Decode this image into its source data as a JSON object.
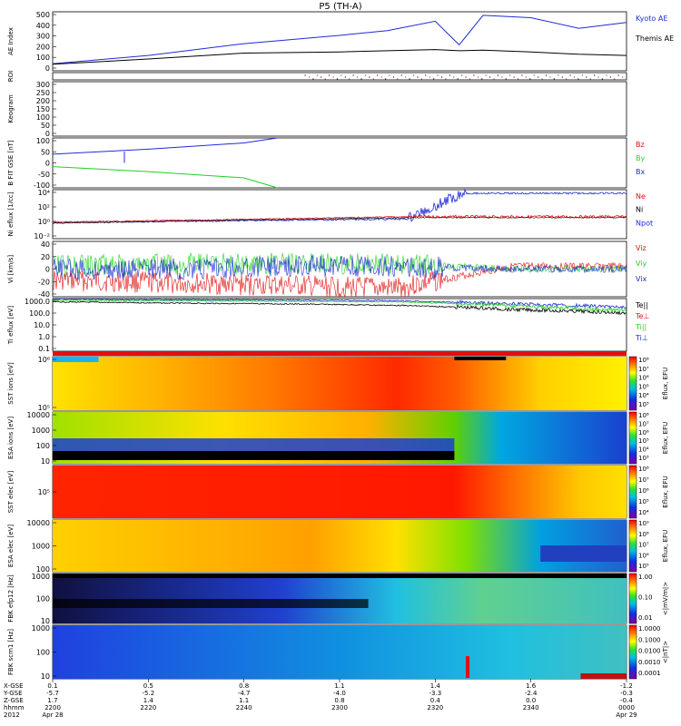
{
  "title": "P5 (TH-A)",
  "colors": {
    "blue": "#1f2bd6",
    "black": "#000000",
    "red": "#e01010",
    "green": "#20d020"
  },
  "panels": [
    {
      "id": "ae",
      "ylabel": "AE Index",
      "ticks": [
        "500",
        "400",
        "300",
        "200",
        "100",
        "0"
      ],
      "legend": [
        {
          "text": "Kyoto AE",
          "color": "#1f2bd6"
        },
        {
          "text": "Themis AE",
          "color": "#000000"
        }
      ]
    },
    {
      "id": "roi",
      "ylabel": "ROI",
      "ticks": []
    },
    {
      "id": "keogram",
      "ylabel": "Keogram",
      "ticks": [
        "300",
        "250",
        "200",
        "150",
        "100",
        "50",
        "0"
      ]
    },
    {
      "id": "bfit",
      "ylabel": "B FIT GSE [nT]",
      "ticks": [
        "100",
        "50",
        "0",
        "-50",
        "-100"
      ],
      "legend": [
        {
          "text": "Bz",
          "color": "#e01010"
        },
        {
          "text": "By",
          "color": "#20d020"
        },
        {
          "text": "Bx",
          "color": "#1f2bd6"
        }
      ]
    },
    {
      "id": "ni",
      "ylabel": "Ni eflux [1/cc]",
      "ticks": [
        "10⁴",
        "10²",
        "10⁰",
        "10⁻²"
      ],
      "legend": [
        {
          "text": "Ne",
          "color": "#e01010"
        },
        {
          "text": "Ni",
          "color": "#000000"
        },
        {
          "text": "Npot",
          "color": "#1f2bd6"
        }
      ]
    },
    {
      "id": "vi",
      "ylabel": "Vi [km/s]",
      "ticks": [
        "40",
        "20",
        "0",
        "-20",
        "-40"
      ],
      "legend": [
        {
          "text": "Viz",
          "color": "#e01010"
        },
        {
          "text": "Viy",
          "color": "#20d020"
        },
        {
          "text": "Vix",
          "color": "#1f2bd6"
        }
      ]
    },
    {
      "id": "ti",
      "ylabel": "Ti eflux [eV]",
      "ticks": [
        "1000.0",
        "100.0",
        "10.0",
        "1.0",
        "0.1"
      ],
      "legend": [
        {
          "text": "Te||",
          "color": "#000000"
        },
        {
          "text": "Te⊥",
          "color": "#e01010"
        },
        {
          "text": "Ti||",
          "color": "#20d020"
        },
        {
          "text": "Ti⊥",
          "color": "#1f2bd6"
        }
      ]
    },
    {
      "id": "sst1",
      "ylabel": "SST ions [eV]",
      "ticks": [
        "10⁶",
        "10⁵"
      ],
      "cbar": {
        "label": "Eflux, EFU",
        "ticks": [
          "10⁸",
          "10⁷",
          "10⁶",
          "10⁵",
          "10⁴",
          "10³"
        ]
      }
    },
    {
      "id": "esa1",
      "ylabel": "ESA ions [eV]",
      "ticks": [
        "10000",
        "1000",
        "100",
        "10"
      ],
      "cbar": {
        "label": "Eflux, EFU",
        "ticks": [
          "10⁸",
          "10⁷",
          "10⁶",
          "10⁵",
          "10⁴",
          "10³"
        ]
      }
    },
    {
      "id": "sst2",
      "ylabel": "SST elec [eV]",
      "ticks": [
        "10⁵"
      ],
      "cbar": {
        "label": "Eflux, EFU",
        "ticks": [
          "10⁸",
          "10⁷",
          "10⁶",
          "10⁵",
          "10⁴"
        ]
      }
    },
    {
      "id": "esa2",
      "ylabel": "ESA elec [eV]",
      "ticks": [
        "10000",
        "1000",
        "100"
      ],
      "cbar": {
        "label": "Eflux, EFU",
        "ticks": [
          "10⁹",
          "10⁸",
          "10⁷",
          "10⁶",
          "10⁵"
        ]
      }
    },
    {
      "id": "fbk1",
      "ylabel": "FBK efp12 [Hz]",
      "ticks": [
        "1000",
        "100",
        "10"
      ],
      "cbar": {
        "label": "<|mV/m|>",
        "ticks": [
          "1.00",
          "0.10",
          "0.01"
        ]
      }
    },
    {
      "id": "fbk2",
      "ylabel": "FBK scm1 [Hz]",
      "ticks": [
        "1000",
        "100",
        "10"
      ],
      "cbar": {
        "label": "<|nT|>",
        "ticks": [
          "1.0000",
          "0.1000",
          "0.0100",
          "0.0010",
          "0.0001"
        ]
      }
    }
  ],
  "xaxis": {
    "row_labels": [
      "X-GSE",
      "Y-GSE",
      "Z-GSE",
      "hhmm",
      "2012"
    ],
    "columns": [
      {
        "vals": [
          "0.1",
          "-5.7",
          "1.7",
          "2200",
          "Apr 28"
        ]
      },
      {
        "vals": [
          "0.5",
          "-5.2",
          "1.4",
          "2220",
          ""
        ]
      },
      {
        "vals": [
          "0.8",
          "-4.7",
          "1.1",
          "2240",
          ""
        ]
      },
      {
        "vals": [
          "1.1",
          "-4.0",
          "0.8",
          "2300",
          ""
        ]
      },
      {
        "vals": [
          "1.4",
          "-3.3",
          "0.4",
          "2320",
          ""
        ]
      },
      {
        "vals": [
          "1.6",
          "-2.4",
          "0.0",
          "2340",
          ""
        ]
      },
      {
        "vals": [
          "-1.2",
          "-0.3",
          "-0.4",
          "0000",
          "Apr 29"
        ]
      }
    ]
  },
  "chart_data": [
    {
      "type": "line",
      "title": "P5 (TH-A)",
      "ylabel": "AE Index",
      "ylim": [
        0,
        500
      ],
      "x_time": [
        "22:00",
        "22:20",
        "22:40",
        "23:00",
        "23:10",
        "23:20",
        "23:25",
        "23:30",
        "23:40",
        "23:50",
        "00:00"
      ],
      "series": [
        {
          "name": "Kyoto AE",
          "values": [
            60,
            130,
            230,
            300,
            340,
            420,
            220,
            470,
            450,
            360,
            410
          ]
        },
        {
          "name": "Themis AE",
          "values": [
            55,
            100,
            150,
            160,
            170,
            180,
            170,
            175,
            160,
            140,
            130
          ]
        }
      ]
    },
    {
      "type": "line",
      "ylabel": "B FIT GSE [nT]",
      "ylim": [
        -100,
        100
      ],
      "x_time": [
        "22:00",
        "22:20",
        "22:40",
        "22:47"
      ],
      "series": [
        {
          "name": "Bx",
          "values": [
            35,
            55,
            80,
            100
          ]
        },
        {
          "name": "By",
          "values": [
            -15,
            -35,
            -60,
            -100
          ]
        }
      ]
    },
    {
      "type": "line",
      "ylabel": "Vi [km/s]",
      "ylim": [
        -50,
        50
      ],
      "series": [
        {
          "name": "Viz",
          "values": [
            -20,
            -25,
            -30,
            -35,
            5,
            5
          ]
        },
        {
          "name": "Viy",
          "values": [
            5,
            10,
            10,
            10,
            0,
            0
          ]
        },
        {
          "name": "Vix",
          "values": [
            0,
            0,
            5,
            5,
            0,
            0
          ]
        }
      ]
    },
    {
      "type": "line",
      "ylabel": "Ti eflux [eV]",
      "series": [
        {
          "name": "Ti⊥",
          "values": [
            1500,
            1400,
            1300,
            1100,
            600,
            300
          ]
        },
        {
          "name": "Te||",
          "values": [
            900,
            700,
            600,
            450,
            200,
            100
          ]
        },
        {
          "name": "Ti||",
          "values": [
            1200,
            1100,
            1000,
            900,
            400,
            150
          ]
        }
      ]
    }
  ]
}
